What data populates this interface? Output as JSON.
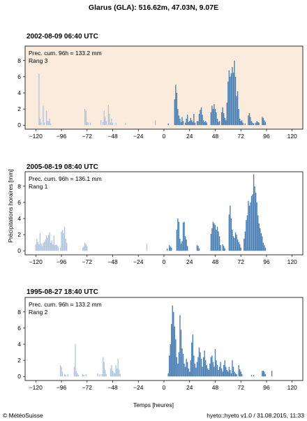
{
  "title": "Glarus (GLA): 516.62m, 47.03N, 9.07E",
  "ylabel": "Précipitations horaires [mm]",
  "xlabel": "Temps [heures]",
  "footer_left": "© MétéoSuisse",
  "footer_right": "hyeto::hyeto v1.0 / 31.08.2015, 11:33",
  "colors": {
    "past": "#b4c6df",
    "future": "#4a7fb3",
    "highlight": "#fbebdd"
  },
  "chart_data": [
    {
      "type": "bar",
      "title": "2002-08-09 06:40 UTC",
      "annotation_line1": "Prec. cum. 96h = 133.2 mm",
      "annotation_line2": "Rang 3",
      "highlight": true,
      "xlim": [
        -130,
        130
      ],
      "ylim": [
        -0.5,
        9.8
      ],
      "xticks": [
        -120,
        -96,
        -72,
        -48,
        -24,
        0,
        24,
        48,
        72,
        96,
        120
      ],
      "yticks": [
        0,
        2,
        4,
        6,
        8
      ],
      "bars": [
        [
          -117,
          6.4
        ],
        [
          -116,
          0.8
        ],
        [
          -115,
          0.3
        ],
        [
          -113,
          2.4
        ],
        [
          -112,
          0.3
        ],
        [
          -110,
          1.8
        ],
        [
          -109,
          0.5
        ],
        [
          -108,
          0.5
        ],
        [
          -107,
          0.8
        ],
        [
          -106,
          0.2
        ],
        [
          -74,
          2.0
        ],
        [
          -73,
          1.8
        ],
        [
          -72,
          0.4
        ],
        [
          -71,
          0.3
        ],
        [
          -69,
          0.3
        ],
        [
          -59,
          0.6
        ],
        [
          -57,
          0.4
        ],
        [
          -56,
          1.8
        ],
        [
          -55,
          1.0
        ],
        [
          -54,
          0.5
        ],
        [
          -52,
          2.5
        ],
        [
          -51,
          1.4
        ],
        [
          -50,
          0.3
        ],
        [
          -49,
          0.8
        ],
        [
          -48,
          0.3
        ],
        [
          -45,
          0.3
        ],
        [
          -36,
          0.3
        ],
        [
          -8,
          0.6
        ],
        [
          4,
          0.2
        ],
        [
          10,
          3.2
        ],
        [
          11,
          5.0
        ],
        [
          12,
          4.0
        ],
        [
          13,
          2.0
        ],
        [
          14,
          1.2
        ],
        [
          15,
          0.8
        ],
        [
          16,
          0.4
        ],
        [
          17,
          1.0
        ],
        [
          18,
          0.5
        ],
        [
          20,
          0.3
        ],
        [
          21,
          0.8
        ],
        [
          22,
          1.3
        ],
        [
          23,
          0.4
        ],
        [
          24,
          0.5
        ],
        [
          25,
          0.9
        ],
        [
          26,
          0.6
        ],
        [
          27,
          0.4
        ],
        [
          28,
          1.4
        ],
        [
          29,
          0.3
        ],
        [
          31,
          0.5
        ],
        [
          32,
          0.5
        ],
        [
          33,
          1.4
        ],
        [
          34,
          1.9
        ],
        [
          35,
          2.2
        ],
        [
          36,
          1.3
        ],
        [
          37,
          0.6
        ],
        [
          38,
          0.4
        ],
        [
          39,
          0.5
        ],
        [
          40,
          0.3
        ],
        [
          44,
          1.6
        ],
        [
          45,
          2.4
        ],
        [
          46,
          2.0
        ],
        [
          47,
          2.6
        ],
        [
          48,
          2.0
        ],
        [
          49,
          1.6
        ],
        [
          50,
          0.8
        ],
        [
          51,
          0.4
        ],
        [
          52,
          0.5
        ],
        [
          54,
          1.6
        ],
        [
          55,
          2.2
        ],
        [
          56,
          1.5
        ],
        [
          57,
          0.9
        ],
        [
          58,
          0.6
        ],
        [
          59,
          2.8
        ],
        [
          60,
          5.4
        ],
        [
          61,
          6.8
        ],
        [
          62,
          6.0
        ],
        [
          63,
          6.4
        ],
        [
          64,
          7.2
        ],
        [
          65,
          6.5
        ],
        [
          66,
          8.0
        ],
        [
          67,
          6.0
        ],
        [
          68,
          3.6
        ],
        [
          69,
          4.2
        ],
        [
          70,
          2.0
        ],
        [
          71,
          0.8
        ],
        [
          72,
          0.5
        ],
        [
          73,
          0.6
        ],
        [
          74,
          0.3
        ],
        [
          76,
          0.2
        ],
        [
          79,
          1.2
        ],
        [
          80,
          1.5
        ],
        [
          81,
          1.0
        ],
        [
          82,
          0.5
        ],
        [
          83,
          0.3
        ],
        [
          84,
          0.2
        ],
        [
          86,
          0.3
        ],
        [
          87,
          0.5
        ],
        [
          88,
          0.4
        ],
        [
          89,
          0.3
        ],
        [
          92,
          1.0
        ],
        [
          93,
          0.9
        ],
        [
          94,
          0.6
        ],
        [
          95,
          0.4
        ]
      ]
    },
    {
      "type": "bar",
      "title": "2005-08-19 08:40 UTC",
      "annotation_line1": "Prec. cum. 96h = 136.1 mm",
      "annotation_line2": "Rang 1",
      "highlight": false,
      "xlim": [
        -130,
        130
      ],
      "ylim": [
        -0.5,
        9.8
      ],
      "xticks": [
        -120,
        -96,
        -72,
        -48,
        -24,
        0,
        24,
        48,
        72,
        96,
        120
      ],
      "yticks": [
        0,
        2,
        4,
        6,
        8
      ],
      "bars": [
        [
          -120,
          0.8
        ],
        [
          -119,
          1.5
        ],
        [
          -118,
          1.1
        ],
        [
          -117,
          0.8
        ],
        [
          -116,
          2.2
        ],
        [
          -115,
          0.9
        ],
        [
          -114,
          0.6
        ],
        [
          -113,
          1.0
        ],
        [
          -112,
          1.1
        ],
        [
          -111,
          1.4
        ],
        [
          -110,
          1.9
        ],
        [
          -109,
          1.6
        ],
        [
          -108,
          2.0
        ],
        [
          -107,
          2.3
        ],
        [
          -106,
          1.0
        ],
        [
          -105,
          1.3
        ],
        [
          -104,
          0.8
        ],
        [
          -103,
          1.9
        ],
        [
          -102,
          0.7
        ],
        [
          -101,
          0.8
        ],
        [
          -100,
          0.7
        ],
        [
          -99,
          0.5
        ],
        [
          -97,
          0.4
        ],
        [
          -96,
          2.4
        ],
        [
          -95,
          2.6
        ],
        [
          -94,
          2.2
        ],
        [
          -93,
          3.0
        ],
        [
          -92,
          1.5
        ],
        [
          -91,
          1.0
        ],
        [
          -76,
          0.4
        ],
        [
          -75,
          0.6
        ],
        [
          -74,
          1.0
        ],
        [
          -73,
          0.8
        ],
        [
          -72,
          0.6
        ],
        [
          -16,
          0.8
        ],
        [
          3,
          0.3
        ],
        [
          5,
          0.7
        ],
        [
          6,
          0.5
        ],
        [
          7,
          0.4
        ],
        [
          12,
          2.6
        ],
        [
          13,
          4.0
        ],
        [
          14,
          3.6
        ],
        [
          15,
          1.5
        ],
        [
          16,
          0.9
        ],
        [
          17,
          1.2
        ],
        [
          18,
          3.5
        ],
        [
          19,
          3.6
        ],
        [
          20,
          1.8
        ],
        [
          21,
          1.4
        ],
        [
          22,
          0.6
        ],
        [
          31,
          0.7
        ],
        [
          32,
          0.6
        ],
        [
          33,
          0.3
        ],
        [
          44,
          2.1
        ],
        [
          45,
          2.8
        ],
        [
          46,
          3.6
        ],
        [
          47,
          3.4
        ],
        [
          48,
          3.2
        ],
        [
          49,
          2.6
        ],
        [
          50,
          3.0
        ],
        [
          51,
          2.4
        ],
        [
          52,
          1.8
        ],
        [
          53,
          0.7
        ],
        [
          55,
          0.8
        ],
        [
          56,
          0.6
        ],
        [
          57,
          0.3
        ],
        [
          61,
          4.5
        ],
        [
          62,
          5.6
        ],
        [
          63,
          4.0
        ],
        [
          64,
          2.6
        ],
        [
          65,
          1.8
        ],
        [
          66,
          1.6
        ],
        [
          67,
          2.3
        ],
        [
          68,
          2.0
        ],
        [
          69,
          1.4
        ],
        [
          70,
          1.1
        ],
        [
          71,
          0.8
        ],
        [
          72,
          0.4
        ],
        [
          75,
          1.5
        ],
        [
          76,
          2.4
        ],
        [
          77,
          3.8
        ],
        [
          78,
          4.4
        ],
        [
          79,
          6.2
        ],
        [
          80,
          5.6
        ],
        [
          81,
          6.0
        ],
        [
          82,
          6.8
        ],
        [
          83,
          7.0
        ],
        [
          84,
          9.5
        ],
        [
          85,
          8.0
        ],
        [
          86,
          7.2
        ],
        [
          87,
          6.0
        ],
        [
          88,
          4.4
        ],
        [
          89,
          3.4
        ],
        [
          90,
          2.8
        ],
        [
          91,
          2.2
        ],
        [
          92,
          1.8
        ],
        [
          93,
          1.0
        ],
        [
          94,
          0.7
        ],
        [
          95,
          0.4
        ]
      ]
    },
    {
      "type": "bar",
      "title": "1995-08-27 18:40 UTC",
      "annotation_line1": "Prec. cum. 96h = 133.2 mm",
      "annotation_line2": "Rang 2",
      "highlight": false,
      "xlim": [
        -130,
        130
      ],
      "ylim": [
        -0.5,
        9.8
      ],
      "xticks": [
        -120,
        -96,
        -72,
        -48,
        -24,
        0,
        24,
        48,
        72,
        96,
        120
      ],
      "yticks": [
        0,
        2,
        4,
        6,
        8
      ],
      "bars": [
        [
          -97,
          1.4
        ],
        [
          -96,
          1.2
        ],
        [
          -95,
          0.6
        ],
        [
          -93,
          0.3
        ],
        [
          -92,
          0.2
        ],
        [
          -90,
          0.3
        ],
        [
          -84,
          1.2
        ],
        [
          -83,
          4.0
        ],
        [
          -82,
          0.7
        ],
        [
          -81,
          0.4
        ],
        [
          -80,
          0.2
        ],
        [
          -76,
          0.3
        ],
        [
          -75,
          0.2
        ],
        [
          -73,
          0.3
        ],
        [
          -62,
          0.4
        ],
        [
          -60,
          0.3
        ],
        [
          -58,
          0.3
        ],
        [
          -57,
          2.4
        ],
        [
          -56,
          1.8
        ],
        [
          -55,
          0.8
        ],
        [
          -54,
          0.3
        ],
        [
          -50,
          1.0
        ],
        [
          -49,
          1.4
        ],
        [
          -48,
          0.7
        ],
        [
          -47,
          0.5
        ],
        [
          -46,
          0.4
        ],
        [
          -45,
          1.4
        ],
        [
          -44,
          1.0
        ],
        [
          -43,
          2.2
        ],
        [
          -42,
          0.8
        ],
        [
          -41,
          0.3
        ],
        [
          4,
          0.4
        ],
        [
          5,
          2.6
        ],
        [
          6,
          4.0
        ],
        [
          7,
          6.5
        ],
        [
          8,
          8.8
        ],
        [
          9,
          8.0
        ],
        [
          10,
          6.2
        ],
        [
          11,
          4.6
        ],
        [
          12,
          2.4
        ],
        [
          13,
          1.6
        ],
        [
          14,
          3.0
        ],
        [
          15,
          7.6
        ],
        [
          16,
          5.8
        ],
        [
          17,
          3.5
        ],
        [
          18,
          2.8
        ],
        [
          19,
          1.6
        ],
        [
          20,
          1.2
        ],
        [
          21,
          2.2
        ],
        [
          22,
          1.8
        ],
        [
          23,
          1.0
        ],
        [
          24,
          0.6
        ],
        [
          25,
          2.0
        ],
        [
          26,
          4.2
        ],
        [
          27,
          5.2
        ],
        [
          28,
          2.6
        ],
        [
          29,
          1.6
        ],
        [
          30,
          1.1
        ],
        [
          31,
          1.8
        ],
        [
          32,
          2.4
        ],
        [
          33,
          3.6
        ],
        [
          34,
          3.0
        ],
        [
          35,
          2.2
        ],
        [
          36,
          1.2
        ],
        [
          37,
          2.4
        ],
        [
          38,
          3.2
        ],
        [
          39,
          2.0
        ],
        [
          40,
          1.4
        ],
        [
          41,
          1.0
        ],
        [
          42,
          0.8
        ],
        [
          43,
          1.6
        ],
        [
          44,
          2.4
        ],
        [
          45,
          2.6
        ],
        [
          46,
          1.8
        ],
        [
          47,
          1.2
        ],
        [
          48,
          3.4
        ],
        [
          49,
          2.0
        ],
        [
          50,
          1.4
        ],
        [
          51,
          0.8
        ],
        [
          52,
          1.2
        ],
        [
          53,
          1.8
        ],
        [
          54,
          1.0
        ],
        [
          55,
          0.6
        ],
        [
          56,
          1.4
        ],
        [
          57,
          2.0
        ],
        [
          58,
          1.2
        ],
        [
          59,
          0.8
        ],
        [
          60,
          0.6
        ],
        [
          61,
          1.2
        ],
        [
          62,
          0.8
        ],
        [
          63,
          0.4
        ],
        [
          64,
          2.0
        ],
        [
          65,
          1.2
        ],
        [
          66,
          0.6
        ],
        [
          67,
          0.4
        ],
        [
          68,
          0.3
        ],
        [
          70,
          1.4
        ],
        [
          71,
          0.9
        ],
        [
          72,
          0.6
        ],
        [
          73,
          0.3
        ],
        [
          82,
          0.2
        ],
        [
          84,
          0.2
        ],
        [
          92,
          0.7
        ],
        [
          93,
          0.7
        ],
        [
          94,
          0.6
        ],
        [
          95,
          0.3
        ],
        [
          101,
          0.7
        ]
      ]
    }
  ]
}
